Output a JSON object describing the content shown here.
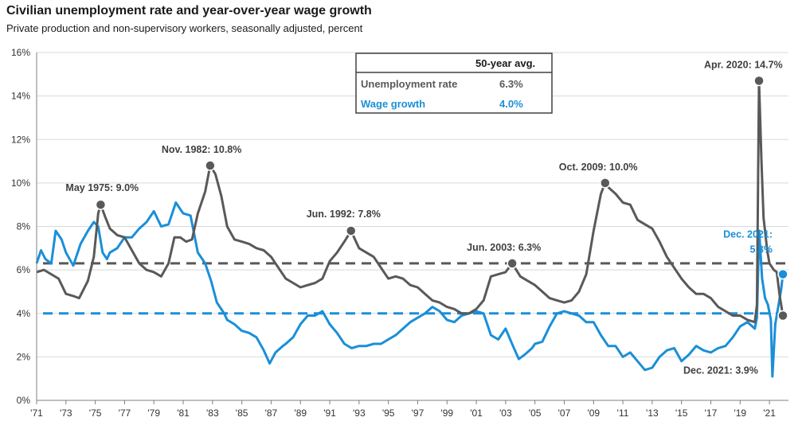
{
  "title": "Civilian unemployment rate and year-over-year wage growth",
  "subtitle": "Private production and non-supervisory workers, seasonally adjusted, percent",
  "colors": {
    "unemployment": "#595959",
    "wage": "#1a8fd8",
    "grid": "#d9d9d9"
  },
  "legend": {
    "header": "50-year avg.",
    "rows": [
      {
        "label": "Unemployment rate",
        "value": "6.3%",
        "color": "#595959"
      },
      {
        "label": "Wage growth",
        "value": "4.0%",
        "color": "#1a8fd8"
      }
    ]
  },
  "chart_data": {
    "type": "line",
    "xlim": [
      1971,
      2022.3
    ],
    "ylim": [
      0,
      16
    ],
    "x_ticks": [
      1971,
      1973,
      1975,
      1977,
      1979,
      1981,
      1983,
      1985,
      1987,
      1989,
      1991,
      1993,
      1995,
      1997,
      1999,
      2001,
      2003,
      2005,
      2007,
      2009,
      2011,
      2013,
      2015,
      2017,
      2019,
      2021
    ],
    "x_tick_labels": [
      "'71",
      "'73",
      "'75",
      "'77",
      "'79",
      "'81",
      "'83",
      "'85",
      "'87",
      "'89",
      "'91",
      "'93",
      "'95",
      "'97",
      "'99",
      "'01",
      "'03",
      "'05",
      "'07",
      "'09",
      "'11",
      "'13",
      "'15",
      "'17",
      "'19",
      "'21"
    ],
    "y_ticks": [
      0,
      2,
      4,
      6,
      8,
      10,
      12,
      14,
      16
    ],
    "y_tick_labels": [
      "0%",
      "2%",
      "4%",
      "6%",
      "8%",
      "10%",
      "12%",
      "14%",
      "16%"
    ],
    "averages": {
      "unemployment": 6.3,
      "wage": 4.0
    },
    "series": [
      {
        "name": "Unemployment rate",
        "points": [
          [
            1971.0,
            5.9
          ],
          [
            1971.5,
            6.0
          ],
          [
            1972.0,
            5.8
          ],
          [
            1972.5,
            5.6
          ],
          [
            1973.0,
            4.9
          ],
          [
            1973.5,
            4.8
          ],
          [
            1973.9,
            4.7
          ],
          [
            1974.5,
            5.5
          ],
          [
            1974.9,
            6.6
          ],
          [
            1975.2,
            8.6
          ],
          [
            1975.37,
            9.0
          ],
          [
            1975.7,
            8.4
          ],
          [
            1976.0,
            7.9
          ],
          [
            1976.5,
            7.6
          ],
          [
            1977.0,
            7.5
          ],
          [
            1977.5,
            6.9
          ],
          [
            1978.0,
            6.3
          ],
          [
            1978.5,
            6.0
          ],
          [
            1979.0,
            5.9
          ],
          [
            1979.5,
            5.7
          ],
          [
            1980.0,
            6.3
          ],
          [
            1980.4,
            7.5
          ],
          [
            1980.8,
            7.5
          ],
          [
            1981.2,
            7.3
          ],
          [
            1981.6,
            7.4
          ],
          [
            1982.0,
            8.6
          ],
          [
            1982.5,
            9.6
          ],
          [
            1982.84,
            10.8
          ],
          [
            1983.2,
            10.4
          ],
          [
            1983.6,
            9.4
          ],
          [
            1984.0,
            8.0
          ],
          [
            1984.5,
            7.4
          ],
          [
            1985.0,
            7.3
          ],
          [
            1985.5,
            7.2
          ],
          [
            1986.0,
            7.0
          ],
          [
            1986.5,
            6.9
          ],
          [
            1987.0,
            6.6
          ],
          [
            1987.5,
            6.1
          ],
          [
            1988.0,
            5.6
          ],
          [
            1988.5,
            5.4
          ],
          [
            1989.0,
            5.2
          ],
          [
            1989.5,
            5.3
          ],
          [
            1990.0,
            5.4
          ],
          [
            1990.5,
            5.6
          ],
          [
            1991.0,
            6.4
          ],
          [
            1991.5,
            6.8
          ],
          [
            1992.0,
            7.3
          ],
          [
            1992.45,
            7.8
          ],
          [
            1993.0,
            7.0
          ],
          [
            1993.5,
            6.8
          ],
          [
            1994.0,
            6.6
          ],
          [
            1994.5,
            6.1
          ],
          [
            1995.0,
            5.6
          ],
          [
            1995.5,
            5.7
          ],
          [
            1996.0,
            5.6
          ],
          [
            1996.5,
            5.3
          ],
          [
            1997.0,
            5.2
          ],
          [
            1997.5,
            4.9
          ],
          [
            1998.0,
            4.6
          ],
          [
            1998.5,
            4.5
          ],
          [
            1999.0,
            4.3
          ],
          [
            1999.5,
            4.2
          ],
          [
            2000.0,
            4.0
          ],
          [
            2000.5,
            4.0
          ],
          [
            2001.0,
            4.2
          ],
          [
            2001.5,
            4.6
          ],
          [
            2002.0,
            5.7
          ],
          [
            2002.5,
            5.8
          ],
          [
            2003.0,
            5.9
          ],
          [
            2003.45,
            6.3
          ],
          [
            2004.0,
            5.7
          ],
          [
            2004.5,
            5.5
          ],
          [
            2005.0,
            5.3
          ],
          [
            2005.5,
            5.0
          ],
          [
            2006.0,
            4.7
          ],
          [
            2006.5,
            4.6
          ],
          [
            2007.0,
            4.5
          ],
          [
            2007.5,
            4.6
          ],
          [
            2008.0,
            5.0
          ],
          [
            2008.5,
            5.8
          ],
          [
            2009.0,
            7.8
          ],
          [
            2009.5,
            9.5
          ],
          [
            2009.79,
            10.0
          ],
          [
            2010.0,
            9.8
          ],
          [
            2010.5,
            9.5
          ],
          [
            2011.0,
            9.1
          ],
          [
            2011.5,
            9.0
          ],
          [
            2012.0,
            8.3
          ],
          [
            2012.5,
            8.1
          ],
          [
            2013.0,
            7.9
          ],
          [
            2013.5,
            7.3
          ],
          [
            2014.0,
            6.6
          ],
          [
            2014.5,
            6.1
          ],
          [
            2015.0,
            5.6
          ],
          [
            2015.5,
            5.2
          ],
          [
            2016.0,
            4.9
          ],
          [
            2016.5,
            4.9
          ],
          [
            2017.0,
            4.7
          ],
          [
            2017.5,
            4.3
          ],
          [
            2018.0,
            4.1
          ],
          [
            2018.5,
            3.9
          ],
          [
            2019.0,
            3.9
          ],
          [
            2019.5,
            3.7
          ],
          [
            2020.0,
            3.6
          ],
          [
            2020.15,
            4.4
          ],
          [
            2020.29,
            14.7
          ],
          [
            2020.45,
            11.1
          ],
          [
            2020.6,
            8.4
          ],
          [
            2020.85,
            6.9
          ],
          [
            2021.0,
            6.3
          ],
          [
            2021.3,
            6.0
          ],
          [
            2021.5,
            5.9
          ],
          [
            2021.7,
            4.8
          ],
          [
            2021.92,
            3.9
          ]
        ]
      },
      {
        "name": "Wage growth",
        "points": [
          [
            1971.0,
            6.3
          ],
          [
            1971.3,
            6.9
          ],
          [
            1971.6,
            6.5
          ],
          [
            1972.0,
            6.3
          ],
          [
            1972.3,
            7.8
          ],
          [
            1972.7,
            7.4
          ],
          [
            1973.0,
            6.8
          ],
          [
            1973.5,
            6.2
          ],
          [
            1974.0,
            7.2
          ],
          [
            1974.5,
            7.8
          ],
          [
            1974.9,
            8.2
          ],
          [
            1975.2,
            8.0
          ],
          [
            1975.5,
            6.8
          ],
          [
            1975.8,
            6.5
          ],
          [
            1976.0,
            6.8
          ],
          [
            1976.5,
            7.0
          ],
          [
            1977.0,
            7.5
          ],
          [
            1977.5,
            7.5
          ],
          [
            1978.0,
            7.9
          ],
          [
            1978.5,
            8.2
          ],
          [
            1979.0,
            8.7
          ],
          [
            1979.5,
            8.0
          ],
          [
            1980.0,
            8.1
          ],
          [
            1980.5,
            9.1
          ],
          [
            1981.0,
            8.6
          ],
          [
            1981.5,
            8.5
          ],
          [
            1982.0,
            6.8
          ],
          [
            1982.5,
            6.3
          ],
          [
            1982.9,
            5.5
          ],
          [
            1983.3,
            4.5
          ],
          [
            1983.8,
            4.0
          ],
          [
            1984.0,
            3.7
          ],
          [
            1984.5,
            3.5
          ],
          [
            1985.0,
            3.2
          ],
          [
            1985.5,
            3.1
          ],
          [
            1986.0,
            2.9
          ],
          [
            1986.5,
            2.3
          ],
          [
            1986.9,
            1.7
          ],
          [
            1987.3,
            2.2
          ],
          [
            1987.8,
            2.5
          ],
          [
            1988.0,
            2.6
          ],
          [
            1988.5,
            2.9
          ],
          [
            1989.0,
            3.5
          ],
          [
            1989.5,
            3.9
          ],
          [
            1990.0,
            3.9
          ],
          [
            1990.5,
            4.1
          ],
          [
            1991.0,
            3.5
          ],
          [
            1991.5,
            3.1
          ],
          [
            1992.0,
            2.6
          ],
          [
            1992.5,
            2.4
          ],
          [
            1993.0,
            2.5
          ],
          [
            1993.5,
            2.5
          ],
          [
            1994.0,
            2.6
          ],
          [
            1994.5,
            2.6
          ],
          [
            1995.0,
            2.8
          ],
          [
            1995.5,
            3.0
          ],
          [
            1996.0,
            3.3
          ],
          [
            1996.5,
            3.6
          ],
          [
            1997.0,
            3.8
          ],
          [
            1997.5,
            4.0
          ],
          [
            1998.0,
            4.3
          ],
          [
            1998.5,
            4.1
          ],
          [
            1999.0,
            3.7
          ],
          [
            1999.5,
            3.6
          ],
          [
            2000.0,
            3.9
          ],
          [
            2000.5,
            4.0
          ],
          [
            2001.0,
            4.1
          ],
          [
            2001.5,
            4.0
          ],
          [
            2002.0,
            3.0
          ],
          [
            2002.5,
            2.8
          ],
          [
            2003.0,
            3.3
          ],
          [
            2003.5,
            2.5
          ],
          [
            2003.9,
            1.9
          ],
          [
            2004.3,
            2.1
          ],
          [
            2004.8,
            2.4
          ],
          [
            2005.0,
            2.6
          ],
          [
            2005.5,
            2.7
          ],
          [
            2006.0,
            3.4
          ],
          [
            2006.5,
            4.0
          ],
          [
            2007.0,
            4.1
          ],
          [
            2007.5,
            4.0
          ],
          [
            2008.0,
            3.9
          ],
          [
            2008.5,
            3.6
          ],
          [
            2009.0,
            3.6
          ],
          [
            2009.5,
            3.0
          ],
          [
            2010.0,
            2.5
          ],
          [
            2010.5,
            2.5
          ],
          [
            2011.0,
            2.0
          ],
          [
            2011.5,
            2.2
          ],
          [
            2012.0,
            1.8
          ],
          [
            2012.5,
            1.4
          ],
          [
            2013.0,
            1.5
          ],
          [
            2013.5,
            2.0
          ],
          [
            2014.0,
            2.3
          ],
          [
            2014.5,
            2.4
          ],
          [
            2015.0,
            1.8
          ],
          [
            2015.5,
            2.1
          ],
          [
            2016.0,
            2.5
          ],
          [
            2016.5,
            2.3
          ],
          [
            2017.0,
            2.2
          ],
          [
            2017.5,
            2.4
          ],
          [
            2018.0,
            2.5
          ],
          [
            2018.5,
            2.9
          ],
          [
            2019.0,
            3.4
          ],
          [
            2019.5,
            3.6
          ],
          [
            2020.0,
            3.3
          ],
          [
            2020.15,
            3.8
          ],
          [
            2020.3,
            7.8
          ],
          [
            2020.5,
            5.6
          ],
          [
            2020.7,
            4.7
          ],
          [
            2020.9,
            4.4
          ],
          [
            2021.1,
            3.7
          ],
          [
            2021.2,
            1.1
          ],
          [
            2021.4,
            3.5
          ],
          [
            2021.6,
            4.3
          ],
          [
            2021.8,
            5.1
          ],
          [
            2021.92,
            5.8
          ]
        ]
      }
    ],
    "annotations": [
      {
        "text": "May 1975: 9.0%",
        "x": 1975.37,
        "y": 9.0,
        "series": "Unemployment rate",
        "color": "#404040",
        "dx": -44,
        "dy": -17,
        "anchor": "start"
      },
      {
        "text": "Nov. 1982: 10.8%",
        "x": 1982.84,
        "y": 10.8,
        "series": "Unemployment rate",
        "color": "#404040",
        "dx": -61,
        "dy": -16,
        "anchor": "start"
      },
      {
        "text": "Jun. 1992: 7.8%",
        "x": 1992.45,
        "y": 7.8,
        "series": "Unemployment rate",
        "color": "#404040",
        "dx": -56,
        "dy": -17,
        "anchor": "start"
      },
      {
        "text": "Jun. 2003: 6.3%",
        "x": 2003.45,
        "y": 6.3,
        "series": "Unemployment rate",
        "color": "#404040",
        "dx": -57,
        "dy": -16,
        "anchor": "start"
      },
      {
        "text": "Oct. 2009: 10.0%",
        "x": 2009.79,
        "y": 10.0,
        "series": "Unemployment rate",
        "color": "#404040",
        "dx": -58,
        "dy": -16,
        "anchor": "start"
      },
      {
        "text": "Apr. 2020: 14.7%",
        "x": 2020.29,
        "y": 14.7,
        "series": "Unemployment rate",
        "color": "#404040",
        "dx": -69,
        "dy": -16,
        "anchor": "start"
      },
      {
        "text": "Dec. 2021: 3.9%",
        "x": 2021.92,
        "y": 3.9,
        "series": "Unemployment rate",
        "color": "#404040",
        "dx": -125,
        "dy": 73,
        "anchor": "start",
        "marker": true
      },
      {
        "text": "Dec. 2021:",
        "x": 2021.92,
        "y": 5.8,
        "series": "Wage growth",
        "color": "#1a8fd8",
        "dx": -13,
        "dy": -46,
        "anchor": "end"
      },
      {
        "text": "5.8%",
        "x": 2021.92,
        "y": 5.8,
        "series": "Wage growth",
        "color": "#1a8fd8",
        "dx": -13,
        "dy": -27,
        "anchor": "end"
      }
    ]
  }
}
